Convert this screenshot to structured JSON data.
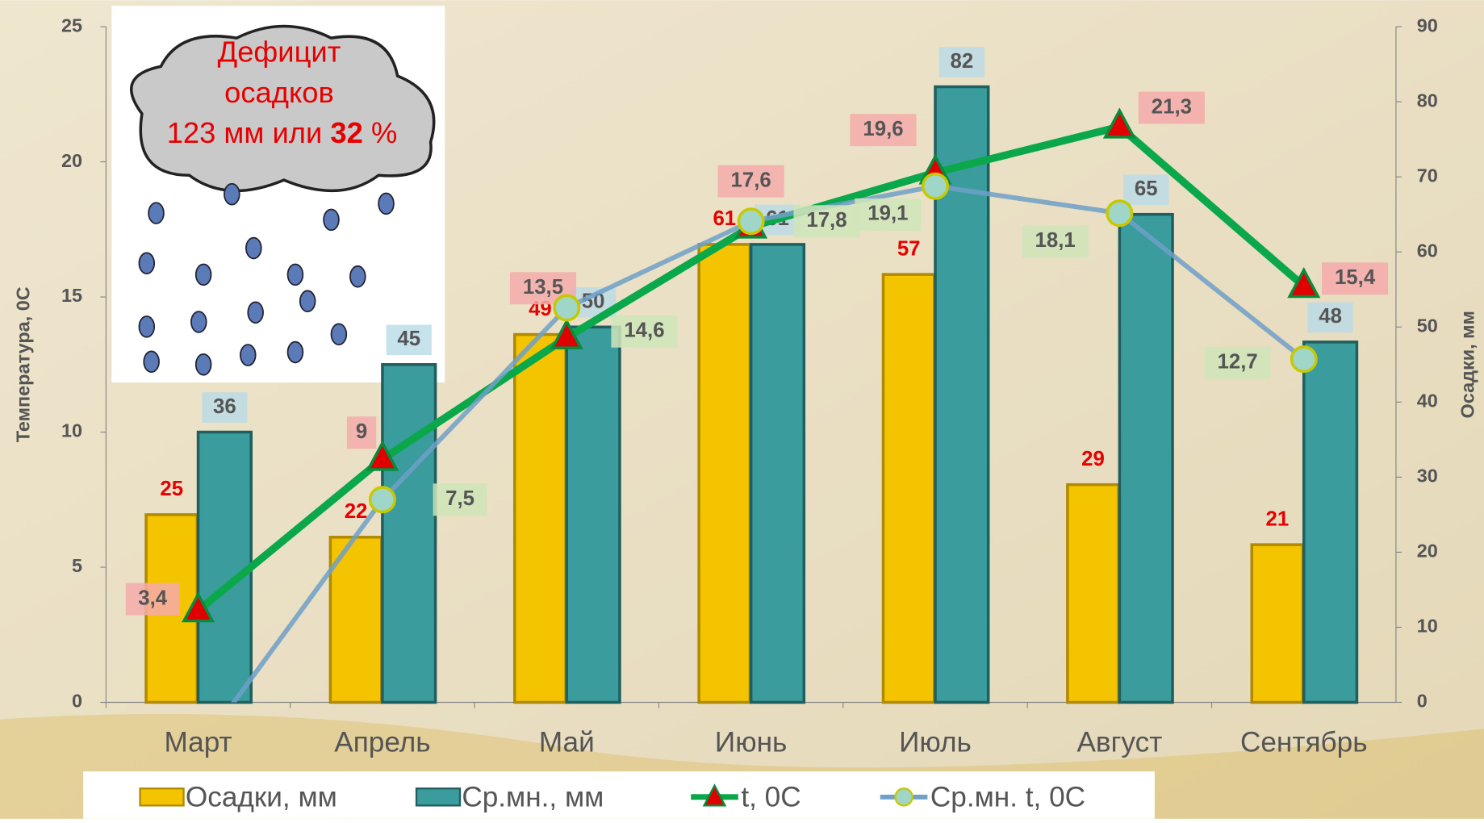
{
  "chart_data": {
    "type": "bar_line",
    "title_annotation": {
      "line1": "Дефицит",
      "line2": "осадков",
      "line3_start": "123 мм или",
      "line3_bold": "32",
      "line3_end": "%"
    },
    "y_label": "Температура, 0C",
    "y2_label": "Осадки, мм",
    "categories": [
      "Март",
      "Апрель",
      "Май",
      "Июнь",
      "Июль",
      "Август",
      "Сентябрь"
    ],
    "ylim": [
      0,
      25
    ],
    "yticks": [
      0,
      5,
      10,
      15,
      20,
      25
    ],
    "y2lim": [
      0,
      90
    ],
    "y2ticks": [
      0,
      10,
      20,
      30,
      40,
      50,
      60,
      70,
      80,
      90
    ],
    "series": [
      {
        "name": "Осадки, мм",
        "type": "bar",
        "axis": "y2",
        "color": "#f5c400",
        "values": [
          25,
          22,
          49,
          61,
          57,
          29,
          21
        ]
      },
      {
        "name": "Ср.мн., мм",
        "type": "bar",
        "axis": "y2",
        "color": "#3a9c9c",
        "values": [
          36,
          45,
          50,
          61,
          82,
          65,
          48
        ]
      },
      {
        "name": "t, 0C",
        "type": "line",
        "axis": "y",
        "color": "#0aa84a",
        "values": [
          3.4,
          9,
          13.5,
          17.6,
          19.6,
          21.3,
          15.4
        ],
        "value_labels": [
          "3,4",
          "9",
          "13,5",
          "17,6",
          "19,6",
          "21,3",
          "15,4"
        ]
      },
      {
        "name": "Ср.мн. t, 0C",
        "type": "line",
        "axis": "y",
        "color": "#6fa0c8",
        "values": [
          -1.8,
          7.5,
          14.6,
          17.8,
          19.1,
          18.1,
          12.7
        ],
        "value_labels": [
          null,
          "7,5",
          "14,6",
          "17,8",
          "19,1",
          "18,1",
          "12,7"
        ]
      }
    ]
  }
}
